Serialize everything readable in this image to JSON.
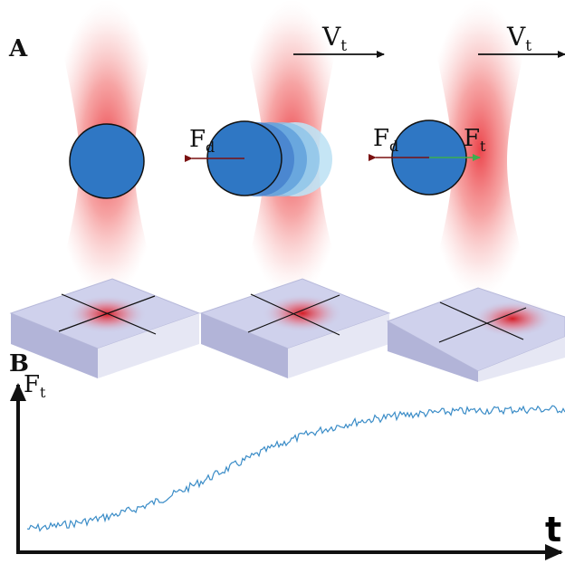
{
  "panel_a": {
    "letter": "A",
    "velocity_label": "V",
    "velocity_sub": "t",
    "drag_label": "F",
    "drag_sub": "d",
    "trap_force_label": "F",
    "trap_force_sub": "t"
  },
  "panel_b": {
    "letter": "B",
    "y_label": "F",
    "y_sub": "t",
    "x_label": "t"
  },
  "colors": {
    "bead": "#2f77c4",
    "beam": "#e8242c",
    "drag_arrow": "#7a1111",
    "trap_arrow": "#3cae4e",
    "detector": "#c9cbe8",
    "trace": "#3a8cc7"
  },
  "chart_data": {
    "type": "line",
    "series": [
      {
        "shape": "sigmoid",
        "low_level": 0.06,
        "high_level": 0.93
      }
    ],
    "xlabel": "t",
    "ylabel": "Ft"
  }
}
